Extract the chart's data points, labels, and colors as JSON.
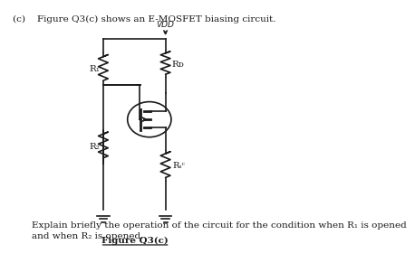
{
  "title_text": "(c)    Figure Q3(c) shows an E-MOSFET biasing circuit.",
  "figure_label": "Figure Q3(c)",
  "caption": "Explain briefly the operation of the circuit for the condition when R₁ is opened\nand when R₂ is opened.",
  "vdd_label": "VDD",
  "r1_label": "R₁",
  "r2_label": "R₂",
  "rd_label": "Rᴅ",
  "rs_label": "Rₛᶜ",
  "bg_color": "#ffffff",
  "line_color": "#1a1a1a",
  "font_color": "#1a1a1a"
}
